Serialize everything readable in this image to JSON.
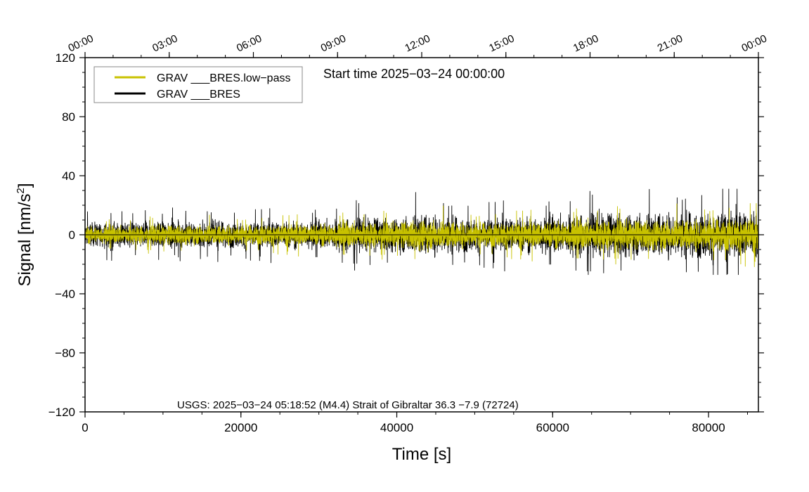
{
  "chart_data": {
    "type": "line",
    "title": "",
    "xlabel": "Time [s]",
    "ylabel_main": "Signal [nm/s",
    "ylabel_sup": "2",
    "ylabel_end": "]",
    "xlim": [
      0,
      86400
    ],
    "ylim": [
      -120,
      120
    ],
    "x_ticks": [
      0,
      20000,
      40000,
      60000,
      80000
    ],
    "x_tick_labels": [
      "0",
      "20000",
      "40000",
      "60000",
      "80000"
    ],
    "x_minor_step": 5000,
    "y_ticks": [
      -120,
      -80,
      -40,
      0,
      40,
      80,
      120
    ],
    "y_tick_labels": [
      "−120",
      "−80",
      "−40",
      "0",
      "40",
      "80",
      "120"
    ],
    "y_minor_step": 10,
    "top_ticks_seconds": [
      0,
      10800,
      21600,
      32400,
      43200,
      54000,
      64800,
      75600,
      86400
    ],
    "top_tick_labels": [
      "00:00",
      "03:00",
      "06:00",
      "09:00",
      "12:00",
      "15:00",
      "18:00",
      "21:00",
      "00:00"
    ],
    "top_minor_step": 3600,
    "zero_line": true,
    "annotation_start": "Start time 2025−03−24 00:00:00",
    "annotation_event": "USGS: 2025−03−24 05:18:52 (M4.4) Strait of Gibraltar 36.3 −7.9 (72724)",
    "legend_position": "top-left",
    "series": [
      {
        "name": "GRAV ___BRES",
        "color": "#000000",
        "envelope_time_s": [
          0,
          10000,
          20000,
          30000,
          34000,
          40000,
          43000,
          50000,
          60000,
          64000,
          70000,
          80000,
          86400
        ],
        "envelope_halfwidth": [
          10,
          11,
          11,
          12,
          15,
          14,
          18,
          14,
          16,
          19,
          18,
          20,
          21
        ],
        "peak_max": 31,
        "peak_min": -27
      },
      {
        "name": "GRAV ___BRES.low−pass",
        "color": "#c8c200",
        "envelope_time_s": [
          0,
          10000,
          20000,
          30000,
          34000,
          40000,
          43000,
          50000,
          60000,
          64000,
          70000,
          80000,
          86400
        ],
        "envelope_halfwidth": [
          7,
          8,
          8,
          9,
          11,
          10,
          13,
          10,
          11,
          13,
          12,
          13,
          14
        ],
        "peak_max": 27,
        "peak_min": -24
      }
    ]
  },
  "legend": {
    "item_lowpass": "GRAV ___BRES.low−pass",
    "item_raw": "GRAV ___BRES"
  }
}
